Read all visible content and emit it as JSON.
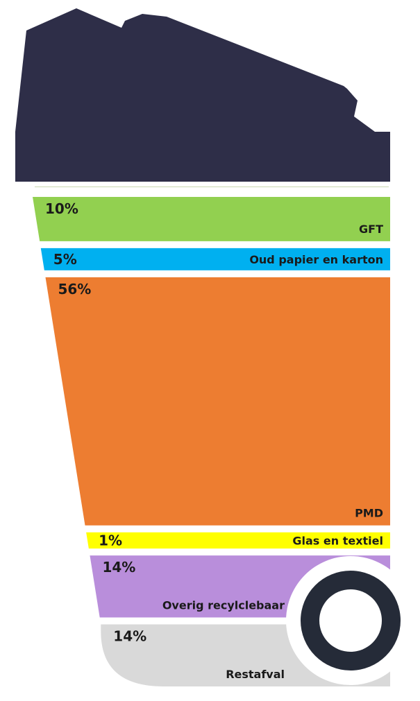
{
  "chart_data": {
    "type": "bar",
    "categories": [
      "GFT",
      "Oud papier en karton",
      "PMD",
      "Glas en textiel",
      "Overig recylclebaar",
      "Restafval"
    ],
    "values": [
      10,
      5,
      56,
      1,
      14,
      14
    ],
    "value_labels": [
      "10%",
      "5%",
      "56%",
      "1%",
      "14%",
      "14%"
    ],
    "unit": "%",
    "colors": [
      "#92d050",
      "#00b0f0",
      "#ed7d31",
      "#ffff00",
      "#b98edb",
      "#d9d9d9"
    ],
    "lid_color": "#2e2e48",
    "wheel_color": "#252b38"
  }
}
